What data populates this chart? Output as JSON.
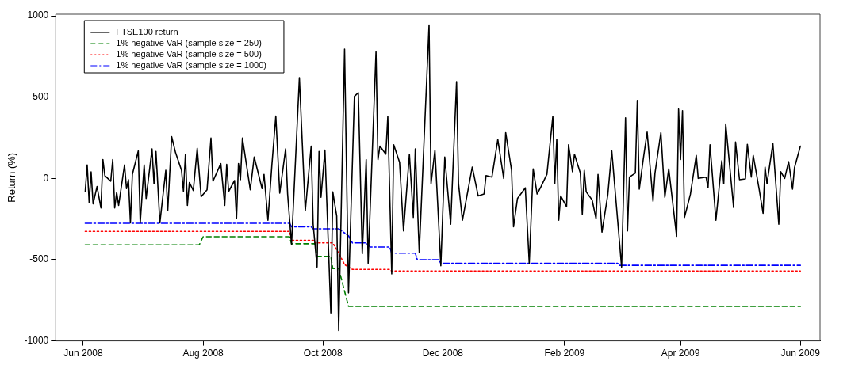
{
  "chart_data": {
    "type": "line",
    "ylabel": "Return (%)",
    "xlim": [
      "2008-05-18",
      "2009-06-11"
    ],
    "xticks": [
      {
        "value": "2008-06-01",
        "label": "Jun 2008"
      },
      {
        "value": "2008-08-01",
        "label": "Aug 2008"
      },
      {
        "value": "2008-10-01",
        "label": "Oct 2008"
      },
      {
        "value": "2008-12-01",
        "label": "Dec 2008"
      },
      {
        "value": "2009-02-01",
        "label": "Feb 2009"
      },
      {
        "value": "2009-04-01",
        "label": "Apr 2009"
      },
      {
        "value": "2009-06-01",
        "label": "Jun 2009"
      }
    ],
    "ylim": [
      -1000,
      1010
    ],
    "yticks": [
      -1000,
      -500,
      0,
      500,
      1000
    ],
    "grid": false,
    "legend": "top left",
    "marker": "none",
    "series": [
      {
        "name": "FTSE100 return",
        "color": "#000000",
        "line_style": "solid",
        "x": [
          "2008-06-02",
          "2008-06-03",
          "2008-06-04",
          "2008-06-05",
          "2008-06-06",
          "2008-06-08",
          "2008-06-10",
          "2008-06-11",
          "2008-06-12",
          "2008-06-15",
          "2008-06-16",
          "2008-06-17",
          "2008-06-18",
          "2008-06-19",
          "2008-06-22",
          "2008-06-23",
          "2008-06-24",
          "2008-06-25",
          "2008-06-26",
          "2008-06-29",
          "2008-06-30",
          "2008-07-02",
          "2008-07-03",
          "2008-07-06",
          "2008-07-07",
          "2008-07-08",
          "2008-07-10",
          "2008-07-13",
          "2008-07-14",
          "2008-07-16",
          "2008-07-18",
          "2008-07-21",
          "2008-07-22",
          "2008-07-23",
          "2008-07-24",
          "2008-07-25",
          "2008-07-27",
          "2008-07-29",
          "2008-07-31",
          "2008-08-03",
          "2008-08-05",
          "2008-08-06",
          "2008-08-10",
          "2008-08-12",
          "2008-08-13",
          "2008-08-14",
          "2008-08-17",
          "2008-08-18",
          "2008-08-19",
          "2008-08-20",
          "2008-08-21",
          "2008-08-25",
          "2008-08-27",
          "2008-08-31",
          "2008-09-01",
          "2008-09-03",
          "2008-09-05",
          "2008-09-07",
          "2008-09-09",
          "2008-09-12",
          "2008-09-13",
          "2008-09-15",
          "2008-09-19",
          "2008-09-22",
          "2008-09-25",
          "2008-09-26",
          "2008-09-28",
          "2008-09-29",
          "2008-09-30",
          "2008-10-02",
          "2008-10-05",
          "2008-10-06",
          "2008-10-08",
          "2008-10-09",
          "2008-10-12",
          "2008-10-14",
          "2008-10-17",
          "2008-10-19",
          "2008-10-21",
          "2008-10-23",
          "2008-10-24",
          "2008-10-28",
          "2008-10-29",
          "2008-10-30",
          "2008-11-02",
          "2008-11-03",
          "2008-11-05",
          "2008-11-06",
          "2008-11-09",
          "2008-11-11",
          "2008-11-14",
          "2008-11-16",
          "2008-11-17",
          "2008-11-19",
          "2008-11-24",
          "2008-11-25",
          "2008-11-27",
          "2008-11-30",
          "2008-12-02",
          "2008-12-05",
          "2008-12-08",
          "2008-12-09",
          "2008-12-11",
          "2008-12-16",
          "2008-12-19",
          "2008-12-22",
          "2008-12-23",
          "2008-12-26",
          "2008-12-29",
          "2009-01-01",
          "2009-01-02",
          "2009-01-05",
          "2009-01-06",
          "2009-01-08",
          "2009-01-12",
          "2009-01-14",
          "2009-01-16",
          "2009-01-18",
          "2009-01-20",
          "2009-01-23",
          "2009-01-26",
          "2009-01-27",
          "2009-01-28",
          "2009-01-29",
          "2009-01-30",
          "2009-02-02",
          "2009-02-03",
          "2009-02-05",
          "2009-02-06",
          "2009-02-09",
          "2009-02-10",
          "2009-02-11",
          "2009-02-12",
          "2009-02-15",
          "2009-02-17",
          "2009-02-18",
          "2009-02-20",
          "2009-02-23",
          "2009-02-25",
          "2009-03-02",
          "2009-03-04",
          "2009-03-05",
          "2009-03-06",
          "2009-03-09",
          "2009-03-10",
          "2009-03-11",
          "2009-03-13",
          "2009-03-15",
          "2009-03-18",
          "2009-03-19",
          "2009-03-22",
          "2009-03-24",
          "2009-03-26",
          "2009-03-30",
          "2009-03-31",
          "2009-04-01",
          "2009-04-02",
          "2009-04-03",
          "2009-04-06",
          "2009-04-09",
          "2009-04-10",
          "2009-04-14",
          "2009-04-15",
          "2009-04-16",
          "2009-04-19",
          "2009-04-22",
          "2009-04-23",
          "2009-04-24",
          "2009-04-28",
          "2009-04-29",
          "2009-05-01",
          "2009-05-04",
          "2009-05-05",
          "2009-05-07",
          "2009-05-08",
          "2009-05-11",
          "2009-05-13",
          "2009-05-14",
          "2009-05-15",
          "2009-05-18",
          "2009-05-21",
          "2009-05-22",
          "2009-05-24",
          "2009-05-26",
          "2009-05-28",
          "2009-05-29",
          "2009-06-01"
        ],
        "values": [
          -80,
          83,
          -150,
          40,
          -157,
          -50,
          -182,
          116,
          17,
          -17,
          116,
          -182,
          -86,
          -166,
          83,
          -63,
          -8,
          -273,
          25,
          169,
          -273,
          83,
          -124,
          182,
          -33,
          166,
          -273,
          50,
          -199,
          257,
          157,
          50,
          -80,
          149,
          -166,
          -25,
          -75,
          185,
          -113,
          -70,
          248,
          -17,
          91,
          -166,
          86,
          -80,
          -13,
          -248,
          91,
          -8,
          248,
          -70,
          132,
          -63,
          25,
          -257,
          83,
          384,
          -91,
          182,
          -96,
          -406,
          620,
          -199,
          199,
          -281,
          -546,
          166,
          -116,
          174,
          -828,
          -83,
          -232,
          -936,
          795,
          -704,
          505,
          527,
          -464,
          116,
          -522,
          778,
          116,
          199,
          149,
          381,
          -588,
          207,
          99,
          -323,
          149,
          -240,
          182,
          -455,
          944,
          -33,
          174,
          -538,
          132,
          -282,
          596,
          -33,
          -257,
          70,
          -108,
          -96,
          17,
          8,
          240,
          0,
          282,
          50,
          -298,
          -124,
          -58,
          -522,
          58,
          -96,
          -50,
          25,
          381,
          -33,
          240,
          -257,
          -108,
          -174,
          207,
          41,
          149,
          33,
          -224,
          50,
          -83,
          -132,
          -248,
          25,
          -331,
          -99,
          169,
          -546,
          373,
          -323,
          8,
          33,
          480,
          -66,
          116,
          285,
          -141,
          33,
          282,
          -116,
          58,
          -356,
          427,
          116,
          417,
          -240,
          -99,
          141,
          0,
          8,
          -58,
          207,
          -257,
          108,
          -33,
          335,
          -179,
          224,
          -8,
          -3,
          210,
          8,
          141,
          -66,
          -215,
          70,
          -33,
          215,
          -282,
          41,
          0,
          103,
          -66,
          66,
          199
        ]
      },
      {
        "name": "1% negative VaR (sample size = 250)",
        "color": "#008000",
        "line_style": "dashed",
        "x": [
          "2008-06-02",
          "2008-07-30",
          "2008-08-01",
          "2008-09-14",
          "2008-09-15",
          "2008-09-27",
          "2008-09-28",
          "2008-10-05",
          "2008-10-06",
          "2008-10-09",
          "2008-10-14",
          "2009-06-01"
        ],
        "values": [
          -409,
          -409,
          -359,
          -359,
          -402,
          -402,
          -480,
          -480,
          -555,
          -555,
          -787,
          -787
        ]
      },
      {
        "name": "1% negative VaR (sample size = 500)",
        "color": "#ff0000",
        "line_style": "dotted",
        "x": [
          "2008-06-02",
          "2008-09-14",
          "2008-09-15",
          "2008-09-26",
          "2008-09-27",
          "2008-10-06",
          "2008-10-09",
          "2008-10-12",
          "2008-10-14",
          "2008-10-16",
          "2008-11-04",
          "2008-11-05",
          "2009-06-01"
        ],
        "values": [
          -326,
          -326,
          -381,
          -381,
          -397,
          -397,
          -460,
          -530,
          -545,
          -560,
          -560,
          -570,
          -570
        ]
      },
      {
        "name": "1% negative VaR (sample size = 1000)",
        "color": "#0000ff",
        "line_style": "dashdot",
        "x": [
          "2008-06-02",
          "2008-09-14",
          "2008-09-15",
          "2008-09-25",
          "2008-09-26",
          "2008-10-09",
          "2008-10-14",
          "2008-10-16",
          "2008-10-23",
          "2008-10-25",
          "2008-11-04",
          "2008-11-05",
          "2008-11-17",
          "2008-11-18",
          "2008-11-29",
          "2008-11-30",
          "2009-02-28",
          "2009-03-01",
          "2009-06-01"
        ],
        "values": [
          -276,
          -276,
          -298,
          -298,
          -310,
          -310,
          -353,
          -397,
          -397,
          -422,
          -422,
          -460,
          -460,
          -500,
          -500,
          -522,
          -522,
          -535,
          -535
        ]
      }
    ]
  }
}
